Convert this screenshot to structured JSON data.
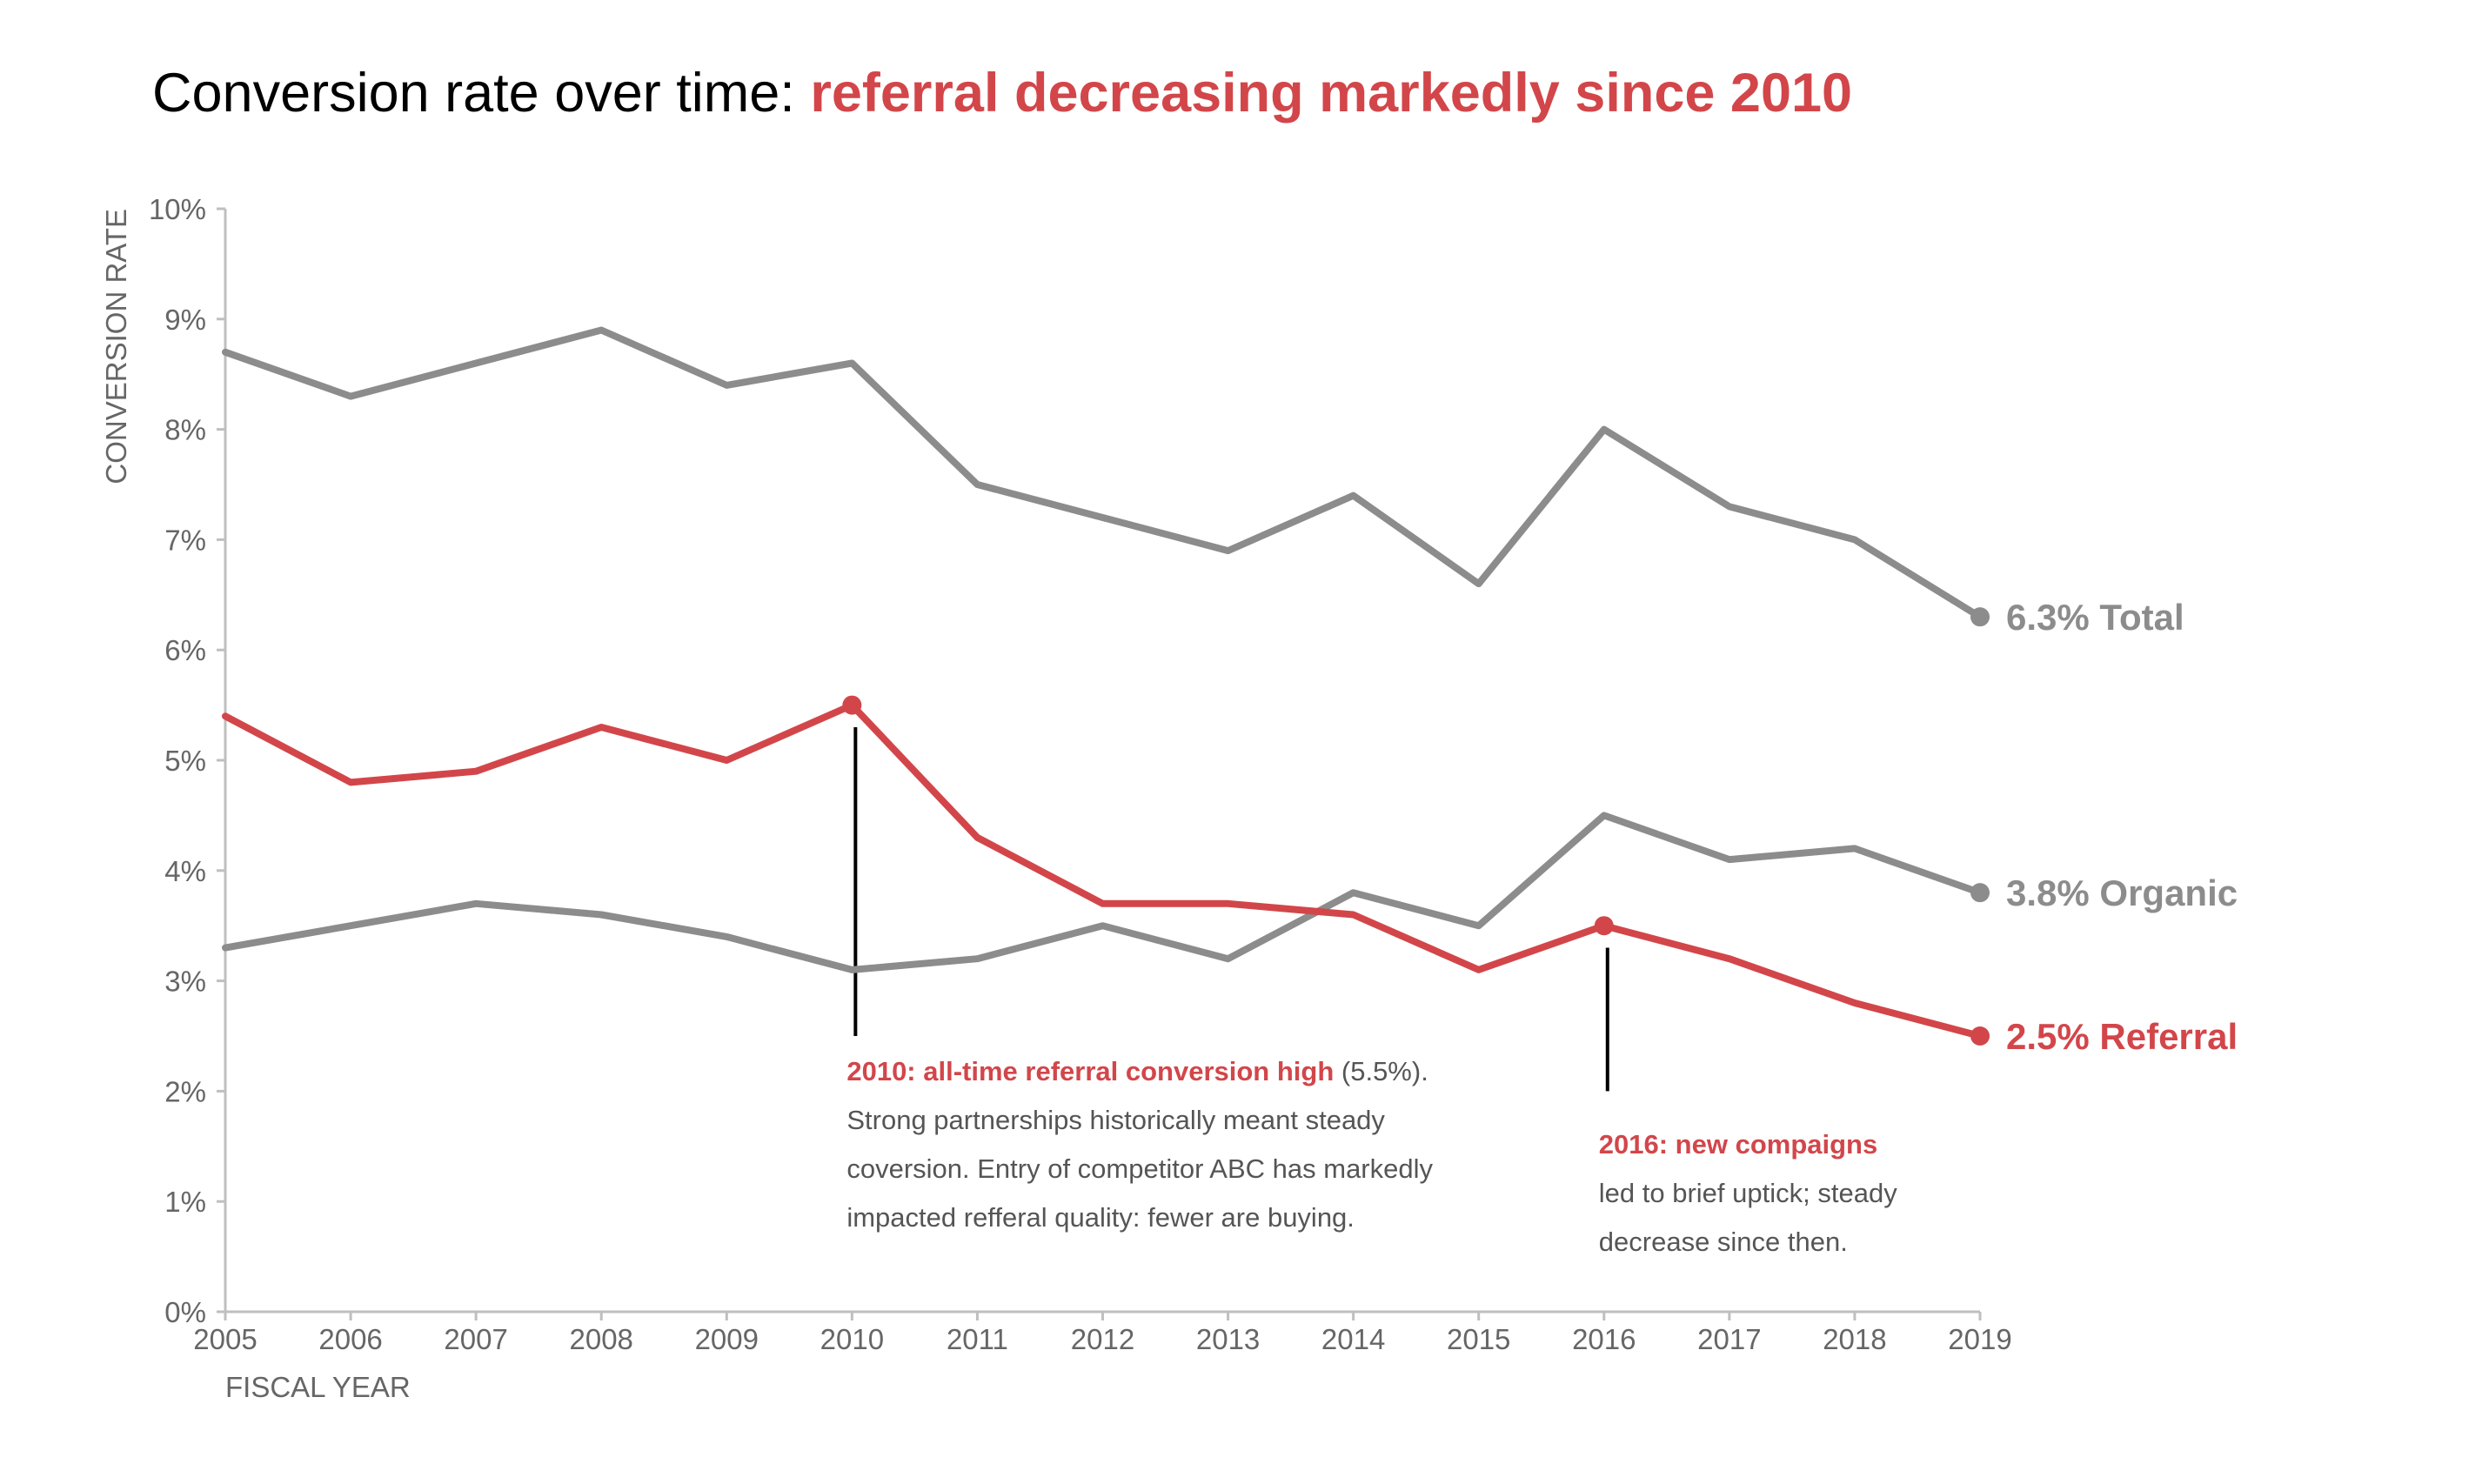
{
  "title": {
    "prefix": "Conversion rate over time: ",
    "highlight": "referral decreasing markedly since 2010"
  },
  "colors": {
    "accent": "#D2464A",
    "gray": "#8C8C8C",
    "text": "#666666",
    "annotation_text": "#555555",
    "axis": "#BFBFBF"
  },
  "chart_data": {
    "type": "line",
    "x": [
      2005,
      2006,
      2007,
      2008,
      2009,
      2010,
      2011,
      2012,
      2013,
      2014,
      2015,
      2016,
      2017,
      2018,
      2019
    ],
    "xlabel": "FISCAL YEAR",
    "ylabel": "CONVERSION RATE",
    "xlim": [
      2005,
      2019
    ],
    "ylim": [
      0,
      10
    ],
    "y_ticks": [
      "0%",
      "1%",
      "2%",
      "3%",
      "4%",
      "5%",
      "6%",
      "7%",
      "8%",
      "9%",
      "10%"
    ],
    "x_ticks": [
      "2005",
      "2006",
      "2007",
      "2008",
      "2009",
      "2010",
      "2011",
      "2012",
      "2013",
      "2014",
      "2015",
      "2016",
      "2017",
      "2018",
      "2019"
    ],
    "grid": false,
    "legend": "direct labels at line ends",
    "series": [
      {
        "name": "Total",
        "end_label": "6.3% Total",
        "color": "#8C8C8C",
        "values": [
          8.7,
          8.3,
          8.6,
          8.9,
          8.4,
          8.6,
          7.5,
          7.2,
          6.9,
          7.4,
          6.6,
          8.0,
          7.3,
          7.0,
          6.3
        ]
      },
      {
        "name": "Organic",
        "end_label": "3.8% Organic",
        "color": "#8C8C8C",
        "values": [
          3.3,
          3.5,
          3.7,
          3.6,
          3.4,
          3.1,
          3.2,
          3.5,
          3.2,
          3.8,
          3.5,
          4.5,
          4.1,
          4.2,
          3.8
        ]
      },
      {
        "name": "Referral",
        "end_label": "2.5% Referral",
        "color": "#D2464A",
        "values": [
          5.4,
          4.8,
          4.9,
          5.3,
          5.0,
          5.5,
          4.3,
          3.7,
          3.7,
          3.6,
          3.1,
          3.5,
          3.2,
          2.8,
          2.5
        ],
        "markers": [
          2010,
          2016,
          2019
        ]
      }
    ],
    "annotations": [
      {
        "x": 2010,
        "y": 5.5,
        "heading": "2010: all-time referral conversion high",
        "heading_suffix": " (5.5%).",
        "lines": [
          "Strong partnerships historically meant steady",
          "coversion. Entry of competitor ABC has markedly",
          "impacted refferal quality: fewer are buying."
        ]
      },
      {
        "x": 2016,
        "y": 3.5,
        "heading": "2016: new compaigns",
        "heading_suffix": "",
        "lines": [
          "led to brief uptick; steady",
          "decrease since then."
        ]
      }
    ]
  }
}
